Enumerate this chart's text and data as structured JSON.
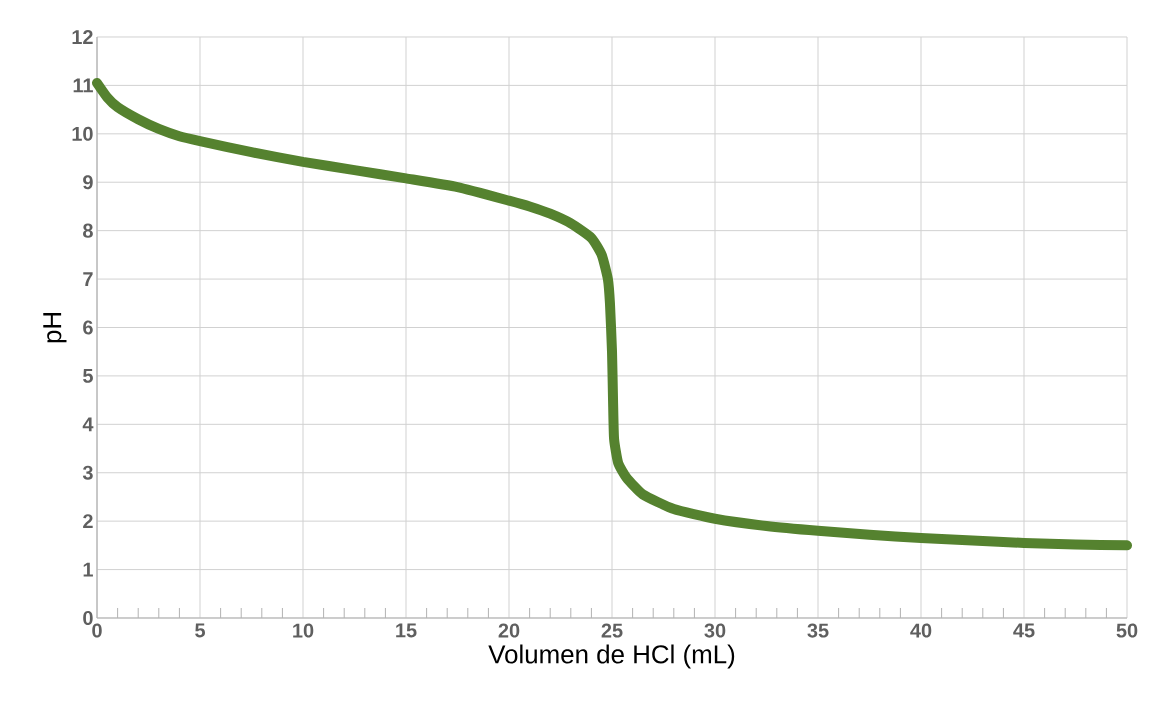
{
  "chart_data": {
    "type": "line",
    "xlabel": "Volumen de HCl (mL)",
    "ylabel": "pH",
    "x": [
      0,
      0.5,
      1,
      2,
      3,
      4,
      5,
      7.5,
      10,
      12.5,
      15,
      17.5,
      20,
      21,
      22,
      23,
      24,
      24.5,
      24.8,
      24.9,
      25,
      25.05,
      25.1,
      25.3,
      25.7,
      26.5,
      28,
      30,
      32.5,
      35,
      37.5,
      40,
      42.5,
      45,
      47.5,
      50
    ],
    "series": [
      {
        "color": "#55822f",
        "values": [
          11.05,
          10.75,
          10.55,
          10.3,
          10.1,
          9.95,
          9.85,
          9.62,
          9.42,
          9.25,
          9.08,
          8.9,
          8.62,
          8.5,
          8.35,
          8.15,
          7.85,
          7.5,
          7.0,
          6.5,
          5.5,
          4.5,
          3.7,
          3.2,
          2.9,
          2.55,
          2.25,
          2.05,
          1.9,
          1.8,
          1.72,
          1.65,
          1.6,
          1.55,
          1.52,
          1.5
        ]
      }
    ],
    "xlim": [
      0,
      50
    ],
    "ylim": [
      0,
      12
    ],
    "xticks": [
      0,
      5,
      10,
      15,
      20,
      25,
      30,
      35,
      40,
      45,
      50
    ],
    "yticks": [
      0,
      1,
      2,
      3,
      4,
      5,
      6,
      7,
      8,
      9,
      10,
      11,
      12
    ],
    "grid": true,
    "marker": "none",
    "line_style": "solid"
  }
}
